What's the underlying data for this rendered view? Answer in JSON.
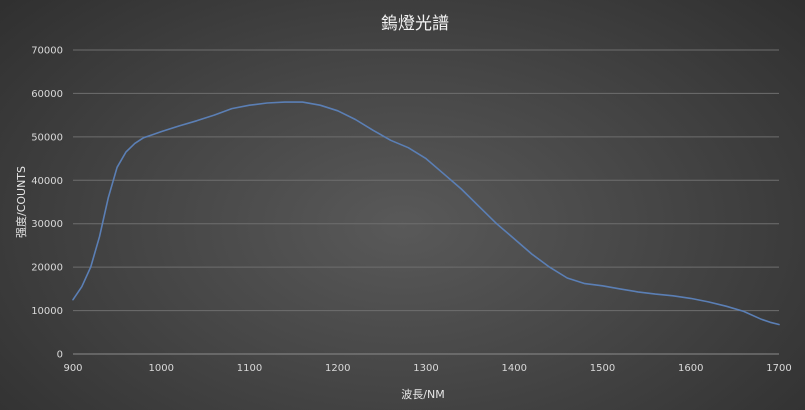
{
  "chart_data": {
    "type": "line",
    "title": "鎢燈光譜",
    "xlabel": "波長/NM",
    "ylabel": "强度/COUNTS",
    "xlim": [
      900,
      1700
    ],
    "ylim": [
      0,
      70000
    ],
    "x_ticks": [
      900,
      1000,
      1100,
      1200,
      1300,
      1400,
      1500,
      1600,
      1700
    ],
    "y_ticks": [
      0,
      10000,
      20000,
      30000,
      40000,
      50000,
      60000,
      70000
    ],
    "grid": true,
    "legend": "none",
    "line_color": "#5b7fb5",
    "series": [
      {
        "x": [
          900,
          910,
          920,
          930,
          940,
          950,
          960,
          970,
          980,
          990,
          1000,
          1020,
          1040,
          1060,
          1080,
          1100,
          1120,
          1140,
          1160,
          1180,
          1200,
          1220,
          1240,
          1260,
          1280,
          1300,
          1320,
          1340,
          1360,
          1380,
          1400,
          1420,
          1440,
          1460,
          1480,
          1500,
          1520,
          1540,
          1560,
          1580,
          1600,
          1620,
          1640,
          1660,
          1680,
          1690,
          1700
        ],
        "values": [
          12500,
          15500,
          20000,
          27000,
          36000,
          43000,
          46500,
          48500,
          49800,
          50500,
          51200,
          52500,
          53700,
          55000,
          56500,
          57300,
          57800,
          58000,
          58000,
          57300,
          56000,
          54000,
          51500,
          49200,
          47500,
          45000,
          41500,
          38000,
          34000,
          30000,
          26500,
          23000,
          20000,
          17500,
          16200,
          15700,
          15000,
          14300,
          13800,
          13400,
          12800,
          12000,
          11000,
          9800,
          8000,
          7300,
          6800
        ]
      }
    ]
  }
}
